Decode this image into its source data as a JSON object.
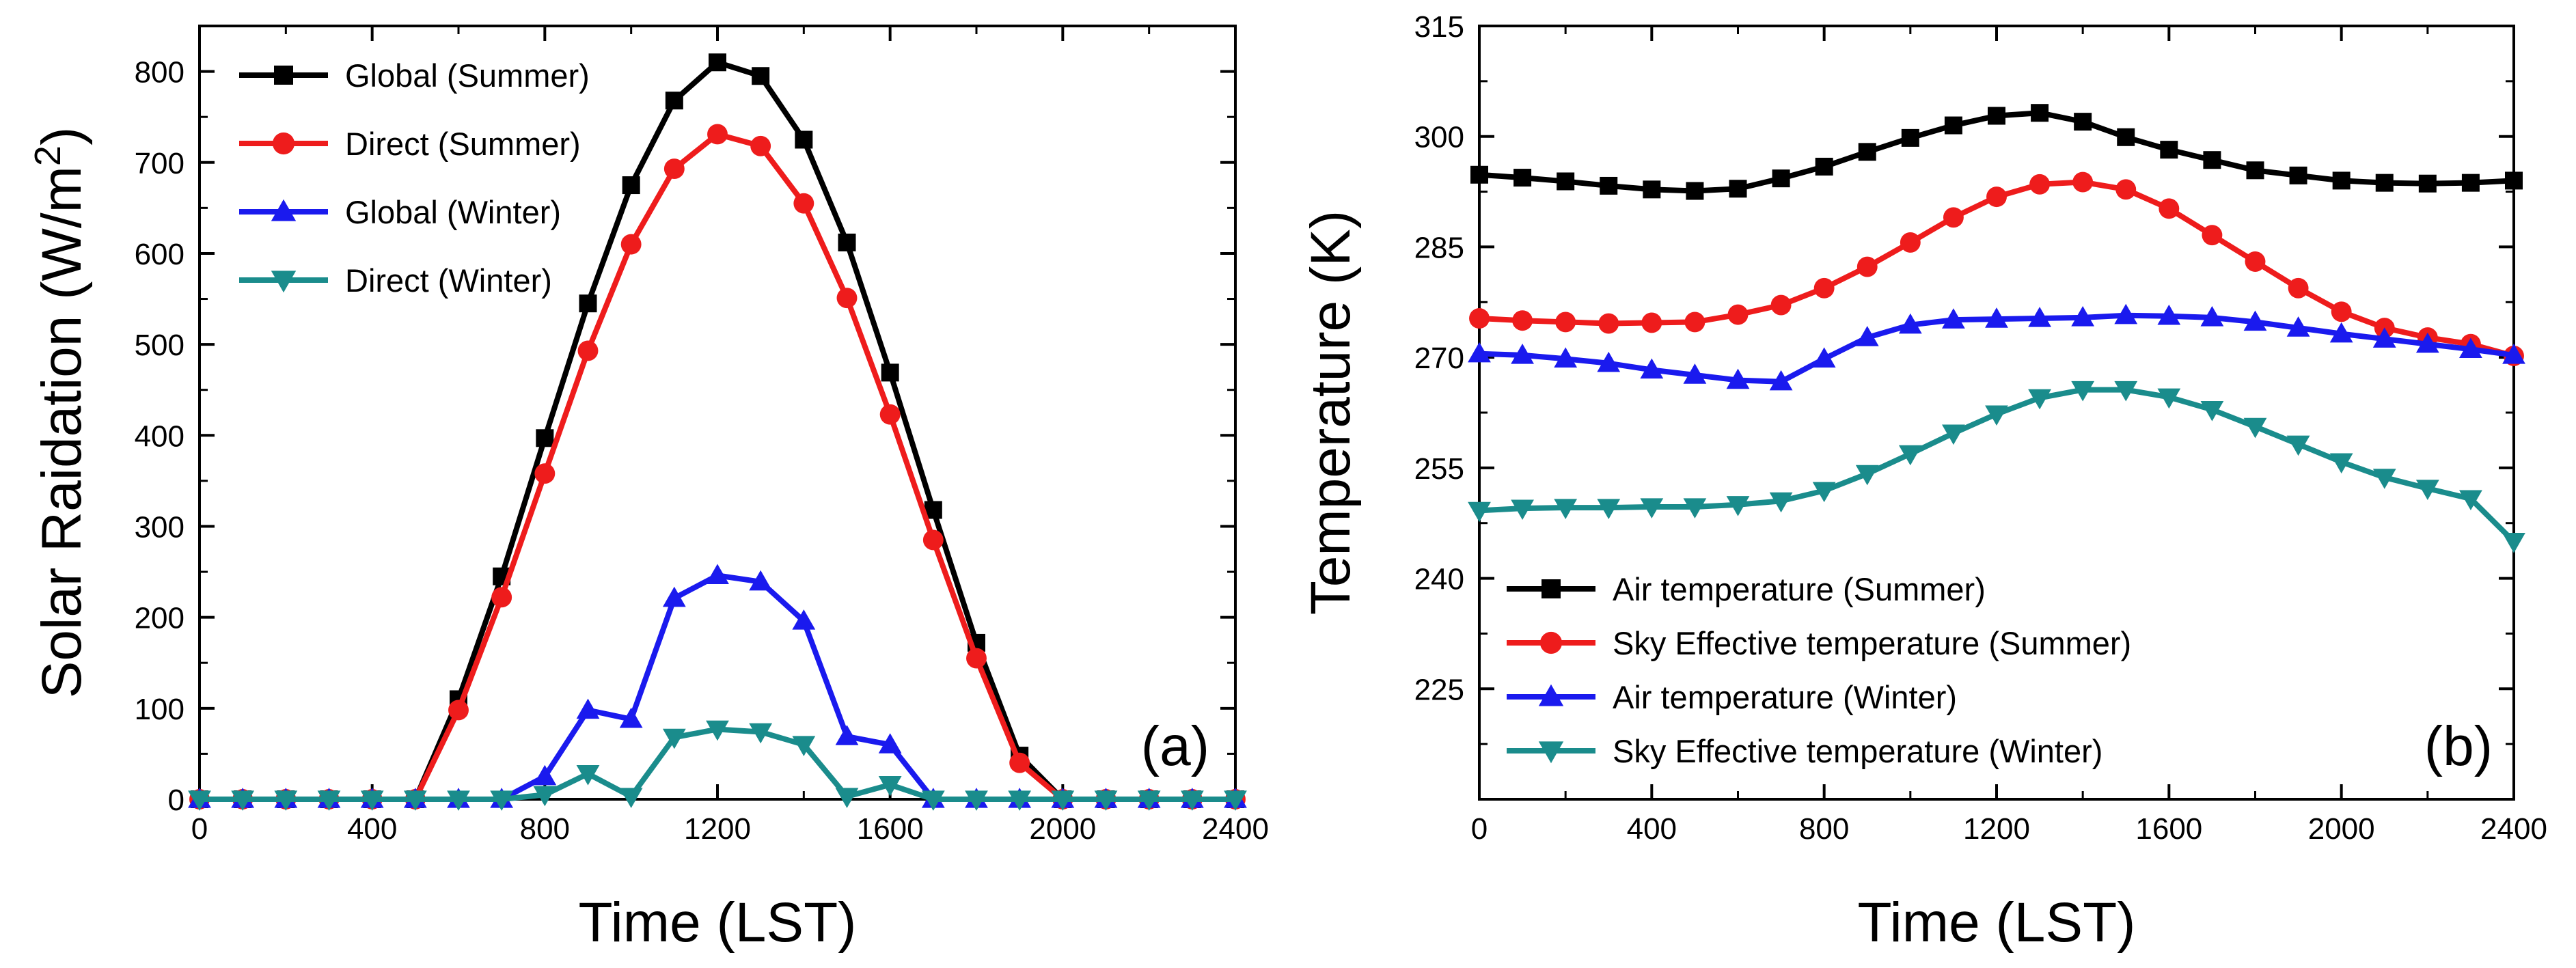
{
  "chart_data": [
    {
      "type": "line",
      "panel_label": "(a)",
      "xlabel": "Time (LST)",
      "ylabel": "Solar Raidation (W/m",
      "ylabel_superscript": "2",
      "ylabel_suffix": ")",
      "xlim": [
        0,
        2400
      ],
      "ylim": [
        0,
        850
      ],
      "xticks": [
        0,
        400,
        800,
        1200,
        1600,
        2000,
        2400
      ],
      "yticks": [
        0,
        100,
        200,
        300,
        400,
        500,
        600,
        700,
        800
      ],
      "legend_position": "top-left",
      "x": [
        0,
        100,
        200,
        300,
        400,
        500,
        600,
        700,
        800,
        900,
        1000,
        1100,
        1200,
        1300,
        1400,
        1500,
        1600,
        1700,
        1800,
        1900,
        2000,
        2100,
        2200,
        2300,
        2400
      ],
      "series": [
        {
          "name": "Global (Summer)",
          "color": "#000000",
          "marker": "square",
          "values": [
            0,
            0,
            0,
            0,
            0,
            0,
            110,
            245,
            397,
            545,
            675,
            768,
            810,
            795,
            725,
            612,
            469,
            318,
            172,
            48,
            0,
            0,
            0,
            0,
            0
          ]
        },
        {
          "name": "Direct (Summer)",
          "color": "#ee1c1c",
          "marker": "circle",
          "values": [
            0,
            0,
            0,
            0,
            0,
            0,
            98,
            222,
            358,
            493,
            610,
            693,
            731,
            718,
            655,
            551,
            423,
            285,
            155,
            40,
            0,
            0,
            0,
            0,
            0
          ]
        },
        {
          "name": "Global (Winter)",
          "color": "#1a1aee",
          "marker": "triangle-up",
          "values": [
            0,
            0,
            0,
            0,
            0,
            0,
            0,
            0,
            25,
            98,
            88,
            221,
            246,
            239,
            196,
            69,
            60,
            0,
            0,
            0,
            0,
            0,
            0,
            0,
            0
          ]
        },
        {
          "name": "Direct (Winter)",
          "color": "#1a8c8c",
          "marker": "triangle-down",
          "values": [
            0,
            0,
            0,
            0,
            0,
            0,
            0,
            0,
            5,
            28,
            3,
            68,
            77,
            74,
            60,
            3,
            16,
            0,
            0,
            0,
            0,
            0,
            0,
            0,
            0
          ]
        }
      ]
    },
    {
      "type": "line",
      "panel_label": "(b)",
      "xlabel": "Time (LST)",
      "ylabel": "Temperature (K)",
      "xlim": [
        0,
        2400
      ],
      "ylim": [
        210,
        315
      ],
      "xticks": [
        0,
        400,
        800,
        1200,
        1600,
        2000,
        2400
      ],
      "yticks": [
        225,
        240,
        255,
        270,
        285,
        300,
        315
      ],
      "legend_position": "bottom-left",
      "x": [
        0,
        100,
        200,
        300,
        400,
        500,
        600,
        700,
        800,
        900,
        1000,
        1100,
        1200,
        1300,
        1400,
        1500,
        1600,
        1700,
        1800,
        1900,
        2000,
        2100,
        2200,
        2300,
        2400
      ],
      "series": [
        {
          "name": "Air temperature (Summer)",
          "color": "#000000",
          "marker": "square",
          "values": [
            294.8,
            294.4,
            293.9,
            293.3,
            292.8,
            292.6,
            292.9,
            294.3,
            295.9,
            297.9,
            299.8,
            301.5,
            302.8,
            303.2,
            302.0,
            299.9,
            298.2,
            296.8,
            295.4,
            294.7,
            294.0,
            293.7,
            293.6,
            293.7,
            294.0
          ]
        },
        {
          "name": "Sky Effective temperature (Summer)",
          "color": "#ee1c1c",
          "marker": "circle",
          "values": [
            275.3,
            275.0,
            274.8,
            274.6,
            274.7,
            274.8,
            275.8,
            277.1,
            279.4,
            282.3,
            285.6,
            289.0,
            291.8,
            293.5,
            293.8,
            292.8,
            290.2,
            286.6,
            283.0,
            279.4,
            276.2,
            274.0,
            272.7,
            271.8,
            270.2
          ]
        },
        {
          "name": "Air temperature (Winter)",
          "color": "#1a1aee",
          "marker": "triangle-up",
          "values": [
            270.5,
            270.3,
            269.8,
            269.2,
            268.3,
            267.6,
            266.9,
            266.7,
            269.8,
            272.7,
            274.4,
            275.1,
            275.2,
            275.3,
            275.4,
            275.7,
            275.6,
            275.4,
            274.8,
            274.0,
            273.2,
            272.5,
            271.8,
            271.1,
            270.3
          ]
        },
        {
          "name": "Sky Effective temperature (Winter)",
          "color": "#1a8c8c",
          "marker": "triangle-down",
          "values": [
            249.2,
            249.5,
            249.6,
            249.6,
            249.7,
            249.7,
            250.0,
            250.5,
            251.9,
            254.2,
            256.9,
            259.7,
            262.3,
            264.5,
            265.6,
            265.6,
            264.6,
            262.9,
            260.6,
            258.2,
            255.8,
            253.7,
            252.2,
            250.8,
            245.0
          ]
        }
      ]
    }
  ]
}
